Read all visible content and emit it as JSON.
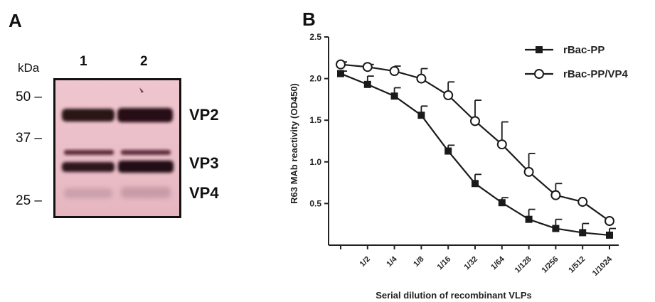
{
  "panel_a": {
    "label": "A",
    "kda_label": "kDa",
    "lanes": [
      "1",
      "2"
    ],
    "markers": [
      {
        "label": "50 –",
        "kda": 50
      },
      {
        "label": "37 –",
        "kda": 37
      },
      {
        "label": "25 –",
        "kda": 25
      }
    ],
    "bands": [
      {
        "name": "VP2"
      },
      {
        "name": "VP3"
      },
      {
        "name": "VP4"
      }
    ]
  },
  "panel_b": {
    "label": "B",
    "chart_data": {
      "type": "line",
      "title": "",
      "xlabel": "Serial dilution of recombinant VLPs",
      "ylabel": "R63 MAb reactivity (OD450)",
      "categories": [
        "",
        "1/2",
        "1/4",
        "1/8",
        "1/16",
        "1/32",
        "1/64",
        "1/128",
        "1/256",
        "1/512",
        "1/1024"
      ],
      "ylim": [
        0,
        2.5
      ],
      "yticks": [
        0.5,
        1.0,
        1.5,
        2.0,
        2.5
      ],
      "ytick_labels": [
        "0.5",
        "1.0",
        "1.5",
        "2.0",
        "2.5"
      ],
      "legend_position": "top-right",
      "series": [
        {
          "name": "rBac-PP",
          "marker": "filled-square",
          "values": [
            2.06,
            1.93,
            1.79,
            1.56,
            1.13,
            0.74,
            0.51,
            0.31,
            0.2,
            0.15,
            0.12
          ],
          "errors": [
            0.03,
            0.1,
            0.1,
            0.11,
            0.07,
            0.11,
            0.06,
            0.12,
            0.11,
            0.11,
            0.08
          ]
        },
        {
          "name": "rBac-PP/VP4",
          "marker": "open-circle",
          "values": [
            2.17,
            2.14,
            2.09,
            2.0,
            1.8,
            1.49,
            1.21,
            0.88,
            0.6,
            0.52,
            0.29
          ],
          "errors": [
            0.03,
            0.03,
            0.06,
            0.12,
            0.16,
            0.25,
            0.27,
            0.22,
            0.14,
            0.0,
            0.0
          ]
        }
      ]
    }
  }
}
